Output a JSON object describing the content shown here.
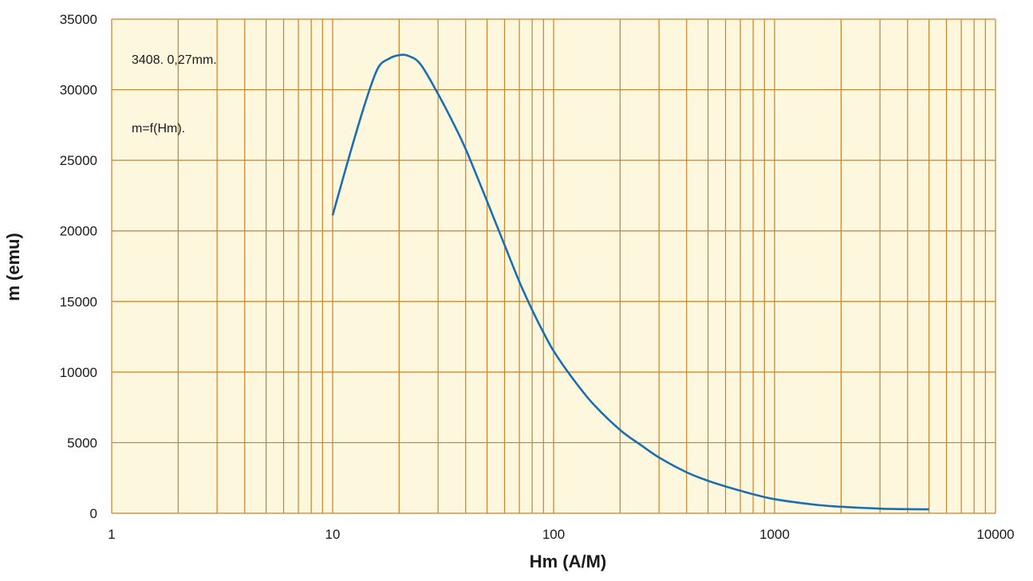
{
  "chart_data": {
    "type": "line",
    "x_scale": "log",
    "xlim": [
      1,
      10000
    ],
    "ylim": [
      0,
      35000
    ],
    "xlabel": "Hm  (A/M)",
    "ylabel": "m  (emu)",
    "x_ticks": [
      "1",
      "10",
      "100",
      "1000",
      "10000"
    ],
    "y_ticks": [
      "0",
      "5000",
      "10000",
      "15000",
      "20000",
      "25000",
      "30000",
      "35000"
    ],
    "annotations": [
      "3408.  0,27mm.",
      "m=f(Hm)."
    ],
    "grid": true,
    "colors": {
      "background": "#fdf7de",
      "grid": "#c8822a",
      "line": "#1a6fb0"
    },
    "series": [
      {
        "x": [
          10,
          12,
          14,
          16,
          18,
          20,
          22,
          25,
          30,
          35,
          40,
          50,
          60,
          70,
          80,
          90,
          100,
          120,
          150,
          200,
          250,
          300,
          400,
          500,
          600,
          700,
          800,
          1000,
          1500,
          2000,
          3000,
          4000,
          5000
        ],
        "y": [
          21100,
          25500,
          29000,
          31500,
          32200,
          32450,
          32400,
          31800,
          29700,
          27700,
          25800,
          22100,
          19000,
          16400,
          14400,
          12800,
          11500,
          9700,
          7800,
          5900,
          4800,
          3950,
          2900,
          2300,
          1900,
          1600,
          1350,
          1000,
          620,
          460,
          330,
          290,
          280
        ]
      }
    ]
  }
}
